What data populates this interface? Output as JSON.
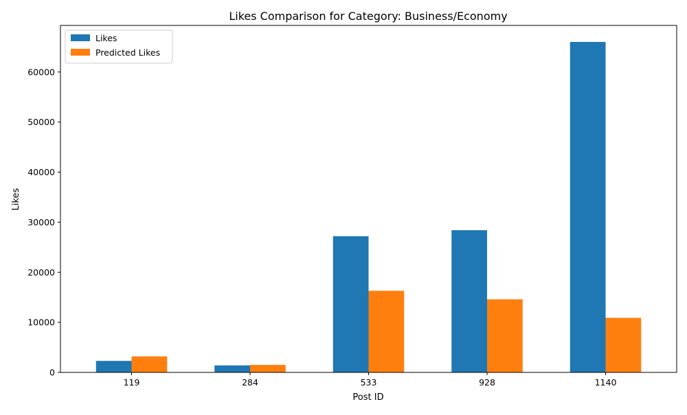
{
  "chart_data": {
    "type": "bar",
    "title": "Likes Comparison for Category: Business/Economy",
    "xlabel": "Post ID",
    "ylabel": "Likes",
    "categories": [
      "119",
      "284",
      "533",
      "928",
      "1140"
    ],
    "series": [
      {
        "name": "Likes",
        "values": [
          2300,
          1400,
          27200,
          28400,
          66000
        ],
        "color": "#1f77b4"
      },
      {
        "name": "Predicted Likes",
        "values": [
          3200,
          1500,
          16300,
          14600,
          10900
        ],
        "color": "#ff7f0e"
      }
    ],
    "ylim": [
      0,
      69300
    ],
    "yticks": [
      0,
      10000,
      20000,
      30000,
      40000,
      50000,
      60000
    ],
    "grid": false,
    "legend_position": "top-left"
  }
}
